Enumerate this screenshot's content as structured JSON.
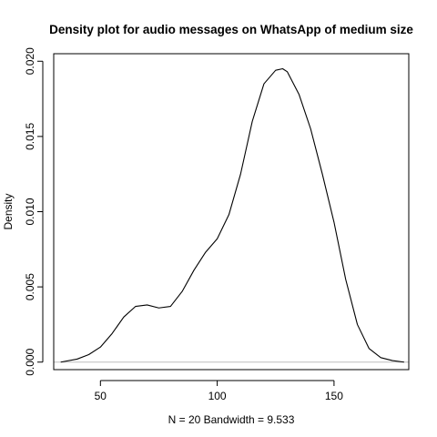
{
  "chart_data": {
    "type": "line",
    "title": "Density plot for audio messages on WhatsApp of medium size",
    "xlabel": "N = 20   Bandwidth = 9.533",
    "ylabel": "Density",
    "xlim": [
      30,
      182
    ],
    "ylim": [
      -0.0005,
      0.0205
    ],
    "x_ticks": [
      50,
      100,
      150
    ],
    "x_tick_labels": [
      "50",
      "100",
      "150"
    ],
    "y_ticks": [
      0.0,
      0.005,
      0.01,
      0.015,
      0.02
    ],
    "y_tick_labels": [
      "0.000",
      "0.005",
      "0.010",
      "0.015",
      "0.020"
    ],
    "grid": false,
    "legend": "none",
    "baseline": 0,
    "colors": {
      "line": "#000000",
      "baseline": "#bebebe",
      "frame": "#000000"
    },
    "series": [
      {
        "x": [
          33,
          40,
          45,
          50,
          55,
          60,
          65,
          70,
          75,
          80,
          85,
          90,
          95,
          100,
          105,
          110,
          115,
          120,
          125,
          128,
          130,
          135,
          140,
          145,
          150,
          155,
          160,
          165,
          170,
          175,
          180
        ],
        "y": [
          0.0,
          0.0002,
          0.0005,
          0.001,
          0.0019,
          0.003,
          0.0037,
          0.0038,
          0.0036,
          0.0037,
          0.0047,
          0.0061,
          0.0073,
          0.0082,
          0.0098,
          0.0125,
          0.016,
          0.0185,
          0.0194,
          0.0195,
          0.0193,
          0.0178,
          0.0155,
          0.0125,
          0.0093,
          0.0055,
          0.0025,
          0.0009,
          0.0003,
          0.0001,
          0.0
        ]
      }
    ]
  }
}
